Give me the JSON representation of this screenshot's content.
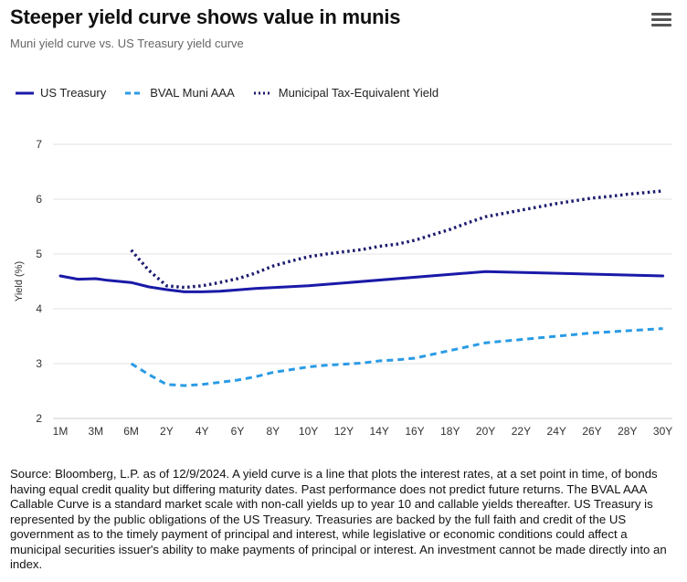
{
  "header": {
    "title": "Steeper yield curve shows value in munis",
    "subtitle": "Muni yield curve vs. US Treasury yield curve",
    "menu_icon": "hamburger-menu-icon"
  },
  "colors": {
    "treasury": "#1a1aa8",
    "muni": "#2a9be6",
    "tax_equiv": "#1a1a6e",
    "grid": "#e3e3e3",
    "axis_text": "#333333"
  },
  "chart_data": {
    "type": "line",
    "title": "Steeper yield curve shows value in munis",
    "subtitle": "Muni yield curve vs. US Treasury yield curve",
    "xlabel": "",
    "ylabel": "Yield (%)",
    "ylim": [
      2,
      7
    ],
    "y_ticks": [
      "2",
      "3",
      "4",
      "5",
      "6",
      "7"
    ],
    "x_tick_labels": [
      "1M",
      "3M",
      "6M",
      "2Y",
      "4Y",
      "6Y",
      "8Y",
      "10Y",
      "12Y",
      "14Y",
      "16Y",
      "18Y",
      "20Y",
      "22Y",
      "24Y",
      "26Y",
      "28Y",
      "30Y"
    ],
    "grid": true,
    "legend_position": "top-left",
    "series": [
      {
        "name": "US Treasury",
        "style": "solid",
        "points": [
          [
            "1M",
            4.6
          ],
          [
            "2M",
            4.54
          ],
          [
            "3M",
            4.55
          ],
          [
            "4M",
            4.52
          ],
          [
            "6M",
            4.48
          ],
          [
            "1Y",
            4.4
          ],
          [
            "2Y",
            4.35
          ],
          [
            "3Y",
            4.31
          ],
          [
            "4Y",
            4.31
          ],
          [
            "5Y",
            4.32
          ],
          [
            "7Y",
            4.37
          ],
          [
            "10Y",
            4.42
          ],
          [
            "20Y",
            4.68
          ],
          [
            "30Y",
            4.6
          ]
        ]
      },
      {
        "name": "BVAL Muni AAA",
        "style": "dashed",
        "points": [
          [
            "6M",
            3.0
          ],
          [
            "1Y",
            2.8
          ],
          [
            "2Y",
            2.62
          ],
          [
            "3Y",
            2.6
          ],
          [
            "4Y",
            2.62
          ],
          [
            "5Y",
            2.66
          ],
          [
            "6Y",
            2.7
          ],
          [
            "7Y",
            2.76
          ],
          [
            "8Y",
            2.84
          ],
          [
            "9Y",
            2.89
          ],
          [
            "10Y",
            2.94
          ],
          [
            "11Y",
            2.97
          ],
          [
            "12Y",
            2.99
          ],
          [
            "13Y",
            3.01
          ],
          [
            "14Y",
            3.05
          ],
          [
            "15Y",
            3.07
          ],
          [
            "16Y",
            3.1
          ],
          [
            "17Y",
            3.17
          ],
          [
            "18Y",
            3.24
          ],
          [
            "19Y",
            3.31
          ],
          [
            "20Y",
            3.38
          ],
          [
            "21Y",
            3.41
          ],
          [
            "22Y",
            3.44
          ],
          [
            "23Y",
            3.47
          ],
          [
            "24Y",
            3.5
          ],
          [
            "25Y",
            3.53
          ],
          [
            "26Y",
            3.56
          ],
          [
            "27Y",
            3.58
          ],
          [
            "28Y",
            3.6
          ],
          [
            "29Y",
            3.62
          ],
          [
            "30Y",
            3.64
          ]
        ]
      },
      {
        "name": "Municipal Tax-Equivalent Yield",
        "style": "dotted",
        "points": [
          [
            "6M",
            5.07
          ],
          [
            "1Y",
            4.7
          ],
          [
            "2Y",
            4.42
          ],
          [
            "3Y",
            4.39
          ],
          [
            "4Y",
            4.42
          ],
          [
            "5Y",
            4.48
          ],
          [
            "6Y",
            4.55
          ],
          [
            "7Y",
            4.65
          ],
          [
            "8Y",
            4.78
          ],
          [
            "9Y",
            4.87
          ],
          [
            "10Y",
            4.95
          ],
          [
            "11Y",
            5.0
          ],
          [
            "12Y",
            5.04
          ],
          [
            "13Y",
            5.08
          ],
          [
            "14Y",
            5.14
          ],
          [
            "15Y",
            5.18
          ],
          [
            "16Y",
            5.25
          ],
          [
            "17Y",
            5.35
          ],
          [
            "18Y",
            5.45
          ],
          [
            "19Y",
            5.57
          ],
          [
            "20Y",
            5.68
          ],
          [
            "21Y",
            5.74
          ],
          [
            "22Y",
            5.8
          ],
          [
            "23Y",
            5.86
          ],
          [
            "24Y",
            5.92
          ],
          [
            "25Y",
            5.97
          ],
          [
            "26Y",
            6.02
          ],
          [
            "27Y",
            6.05
          ],
          [
            "28Y",
            6.09
          ],
          [
            "29Y",
            6.12
          ],
          [
            "30Y",
            6.15
          ]
        ]
      }
    ]
  },
  "footer": {
    "source": "Source: Bloomberg, L.P. as of 12/9/2024. A yield curve is a line that plots the interest rates, at a set point in time, of bonds having equal credit quality but differing maturity dates. Past performance does not predict future returns. The BVAL AAA Callable Curve is a standard market scale with non-call yields up to year 10 and callable yields thereafter. US Treasury is represented by the public obligations of the US Treasury. Treasuries are backed by the full faith and credit of the US government as to the timely payment of principal and interest, while legislative or economic conditions could affect a municipal securities issuer's ability to make payments of principal or interest. An investment cannot be made directly into an index."
  }
}
